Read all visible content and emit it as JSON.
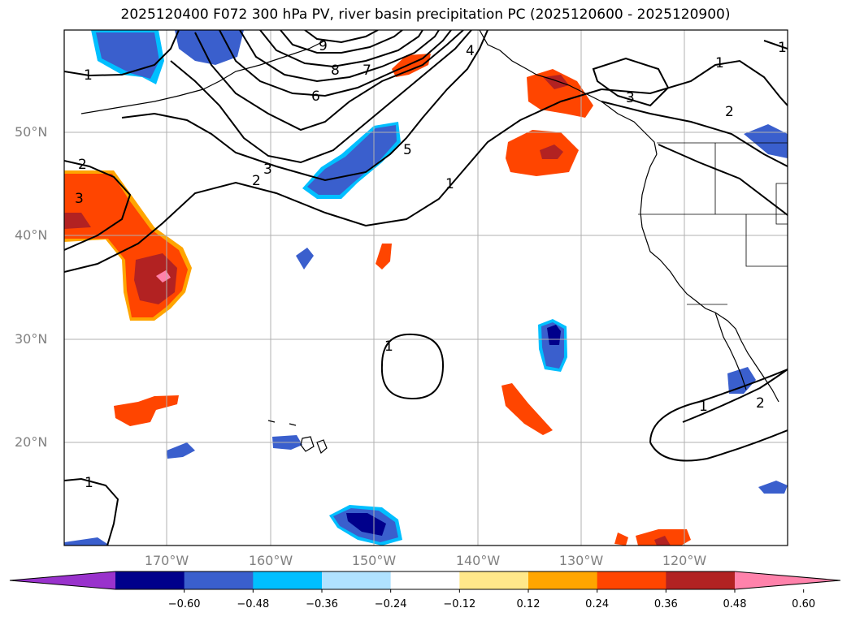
{
  "title": "2025120400 F072 300 hPa PV, river basin precipitation PC (2025120600 - 2025120900)",
  "lat_labels": [
    "50°N",
    "40°N",
    "30°N",
    "20°N"
  ],
  "lon_labels": [
    "170°W",
    "160°W",
    "150°W",
    "140°W",
    "130°W",
    "120°W"
  ],
  "colorbar": {
    "tick_labels": [
      "−0.60",
      "−0.48",
      "−0.36",
      "−0.24",
      "−0.12",
      "0.12",
      "0.24",
      "0.36",
      "0.48",
      "0.60"
    ],
    "colors": [
      "#9932cc",
      "#00008b",
      "#3a5fcd",
      "#00bfff",
      "#b0e2ff",
      "#ffffff",
      "#ffe88a",
      "#ffa500",
      "#ff4500",
      "#b22222",
      "#ff82ab"
    ]
  },
  "contour_labels": {
    "pv_values": [
      "1",
      "1",
      "1",
      "1",
      "1",
      "1",
      "1",
      "2",
      "2",
      "2",
      "2",
      "3",
      "3",
      "3",
      "4",
      "5",
      "6",
      "7",
      "8",
      "9"
    ]
  },
  "colors": {
    "coast": "#000000",
    "grid": "#b0b0b0",
    "tick_label": "#808080"
  }
}
